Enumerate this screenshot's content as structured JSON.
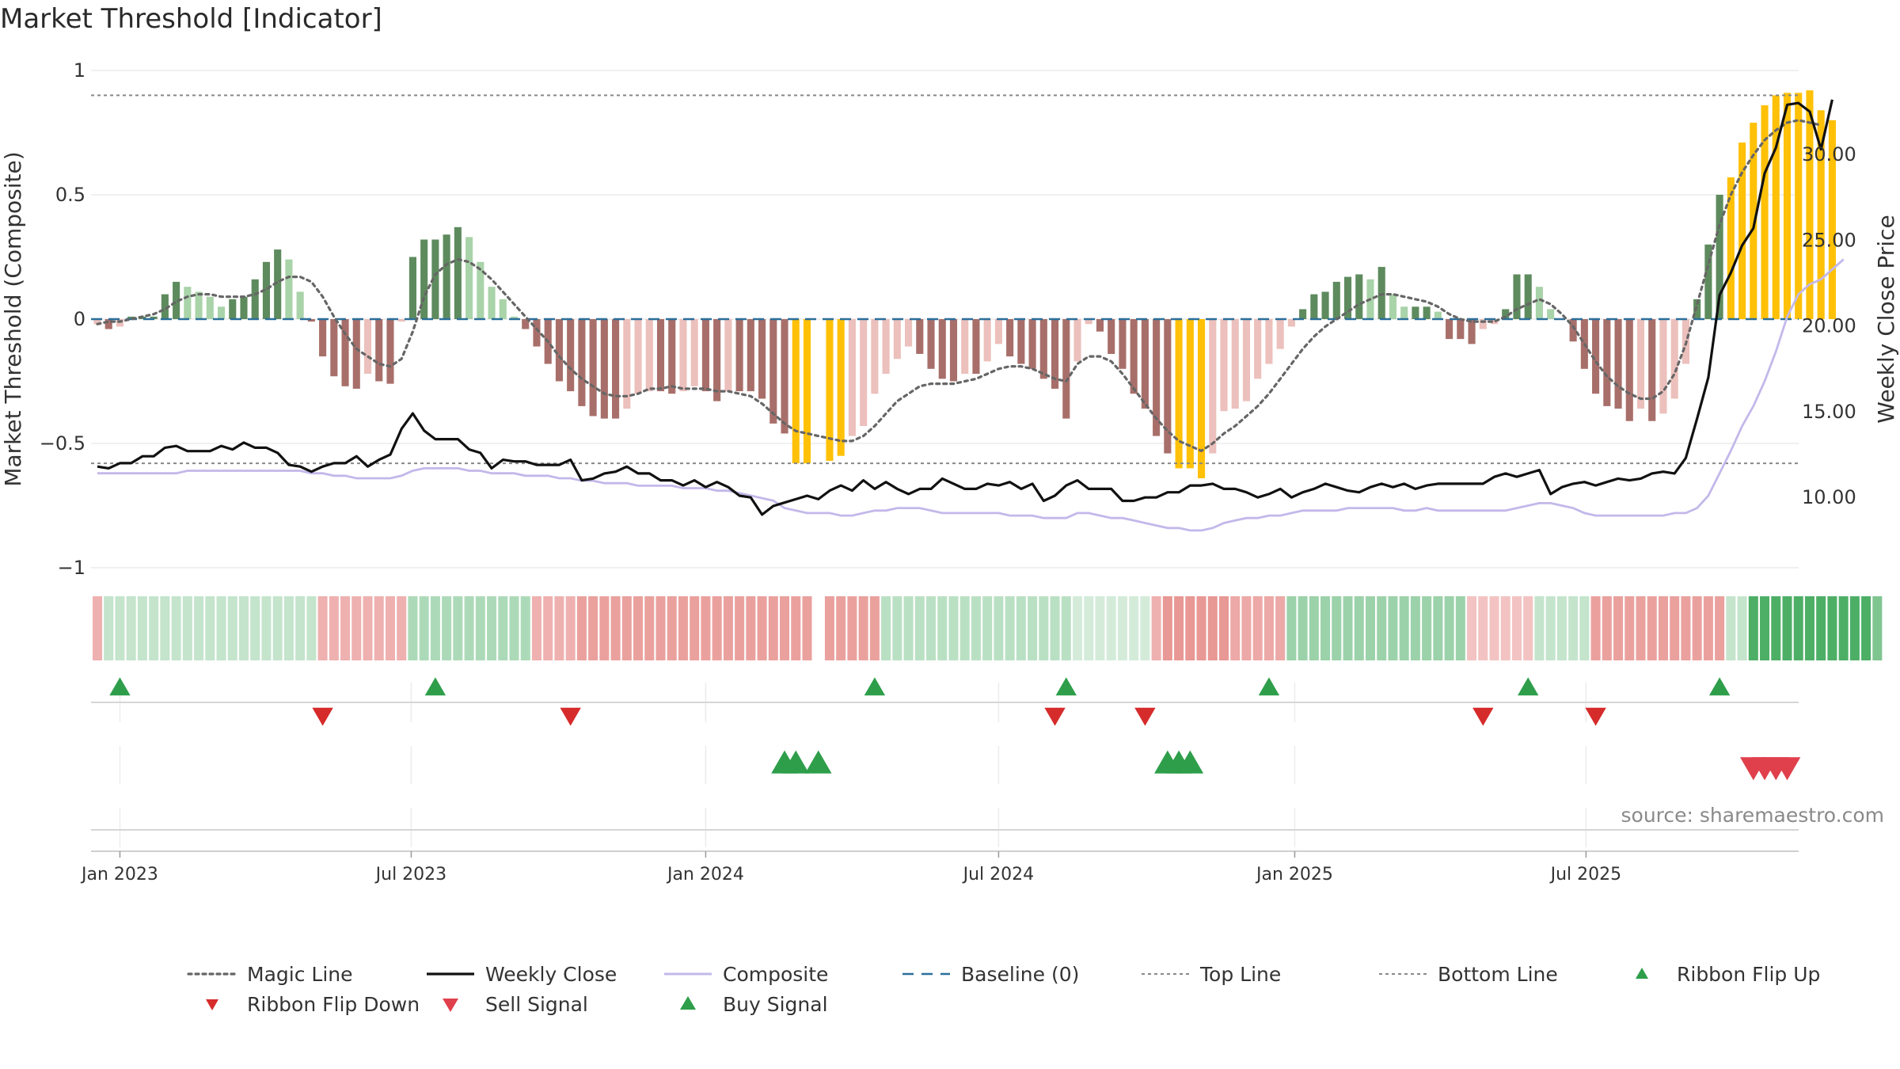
{
  "title": "Market Threshold [Indicator]",
  "source": "source: sharemaestro.com",
  "colors": {
    "buy_dark": "#5e8b5e",
    "buy_light": "#a9d3a9",
    "sell_dark": "#a86f6a",
    "sell_light": "#ecc0bc",
    "extreme": "#ffc107",
    "magic": "#666666",
    "close": "#111111",
    "composite": "#c3b8ea",
    "baseline": "#2b6f9a",
    "threshold": "#888888",
    "flip_up": "#2e9e4a",
    "flip_down": "#d62b2b",
    "signal_sell": "#e0404c",
    "signal_buy": "#2e9e4a",
    "strip_green": "#3aa655",
    "strip_red": "#d9534f"
  },
  "chart_data": {
    "type": "bar",
    "title": "Market Threshold [Indicator]",
    "ylabel": "Market Threshold (Composite)",
    "y2label": "Weekly Close Price",
    "ylim": [
      -1,
      1
    ],
    "y2lim": [
      5.9,
      34.9
    ],
    "y_ticks": [
      1,
      0.5,
      0,
      -0.5,
      -1
    ],
    "y_tick_labels": [
      "1",
      "0.5",
      "0",
      "−0.5",
      "−1"
    ],
    "y2_ticks": [
      30,
      25,
      20,
      15,
      10
    ],
    "y2_tick_labels": [
      "30.00",
      "25.00",
      "20.00",
      "15.00",
      "10.00"
    ],
    "x_start": "2022-12-19",
    "x_ticks": [
      "2023-01-02",
      "2023-07-02",
      "2024-01-01",
      "2024-07-01",
      "2025-01-01",
      "2025-07-01"
    ],
    "x_tick_labels": [
      "Jan 2023",
      "Jul 2023",
      "Jan 2024",
      "Jul 2024",
      "Jan 2025",
      "Jul 2025"
    ],
    "top_line": 0.9,
    "bottom_line": -0.58,
    "baseline": 0,
    "bars": [
      -0.02,
      -0.04,
      -0.03,
      0.01,
      0.01,
      0.01,
      0.1,
      0.15,
      0.13,
      0.11,
      0.09,
      0.05,
      0.08,
      0.09,
      0.16,
      0.23,
      0.28,
      0.24,
      0.11,
      -0.01,
      -0.15,
      -0.23,
      -0.27,
      -0.28,
      -0.22,
      -0.25,
      -0.26,
      -0.01,
      0.25,
      0.32,
      0.32,
      0.34,
      0.37,
      0.33,
      0.23,
      0.13,
      0.08,
      0.01,
      -0.04,
      -0.11,
      -0.18,
      -0.25,
      -0.29,
      -0.35,
      -0.39,
      -0.4,
      -0.4,
      -0.36,
      -0.3,
      -0.29,
      -0.29,
      -0.3,
      -0.29,
      -0.27,
      -0.29,
      -0.33,
      -0.29,
      -0.29,
      -0.29,
      -0.32,
      -0.42,
      -0.46,
      -0.58,
      -0.58,
      0,
      -0.57,
      -0.55,
      -0.47,
      -0.43,
      -0.3,
      -0.22,
      -0.16,
      -0.11,
      -0.14,
      -0.2,
      -0.24,
      -0.25,
      -0.22,
      -0.22,
      -0.17,
      -0.1,
      -0.15,
      -0.18,
      -0.2,
      -0.24,
      -0.28,
      -0.4,
      -0.17,
      -0.02,
      -0.05,
      -0.14,
      -0.2,
      -0.3,
      -0.36,
      -0.47,
      -0.54,
      -0.6,
      -0.6,
      -0.64,
      -0.54,
      -0.37,
      -0.36,
      -0.33,
      -0.24,
      -0.18,
      -0.12,
      -0.03,
      0.04,
      0.1,
      0.11,
      0.15,
      0.17,
      0.18,
      0.16,
      0.21,
      0.1,
      0.05,
      0.05,
      0.05,
      0.03,
      -0.08,
      -0.08,
      -0.1,
      -0.04,
      -0.02,
      0.04,
      0.18,
      0.18,
      0.13,
      0.04,
      0,
      -0.09,
      -0.2,
      -0.3,
      -0.35,
      -0.36,
      -0.41,
      -0.36,
      -0.41,
      -0.38,
      -0.32,
      -0.18,
      0.08,
      0.3,
      0.5,
      0.57,
      0.71,
      0.79,
      0.86,
      0.9,
      0.91,
      0.91,
      0.92,
      0.84,
      0.8
    ],
    "magic_line": [
      -0.02,
      -0.01,
      -0.01,
      0,
      0.01,
      0.02,
      0.04,
      0.07,
      0.09,
      0.1,
      0.1,
      0.09,
      0.09,
      0.09,
      0.1,
      0.12,
      0.15,
      0.17,
      0.17,
      0.15,
      0.09,
      0.01,
      -0.06,
      -0.12,
      -0.15,
      -0.18,
      -0.19,
      -0.16,
      -0.05,
      0.09,
      0.18,
      0.22,
      0.24,
      0.23,
      0.2,
      0.16,
      0.11,
      0.06,
      0.01,
      -0.04,
      -0.09,
      -0.15,
      -0.2,
      -0.24,
      -0.27,
      -0.3,
      -0.31,
      -0.31,
      -0.3,
      -0.28,
      -0.28,
      -0.27,
      -0.28,
      -0.28,
      -0.28,
      -0.29,
      -0.29,
      -0.3,
      -0.31,
      -0.34,
      -0.38,
      -0.42,
      -0.45,
      -0.46,
      -0.47,
      -0.48,
      -0.49,
      -0.49,
      -0.47,
      -0.43,
      -0.38,
      -0.33,
      -0.3,
      -0.27,
      -0.26,
      -0.26,
      -0.26,
      -0.25,
      -0.24,
      -0.22,
      -0.2,
      -0.19,
      -0.19,
      -0.2,
      -0.22,
      -0.24,
      -0.25,
      -0.18,
      -0.15,
      -0.15,
      -0.17,
      -0.22,
      -0.28,
      -0.34,
      -0.4,
      -0.45,
      -0.49,
      -0.51,
      -0.53,
      -0.5,
      -0.46,
      -0.43,
      -0.39,
      -0.35,
      -0.3,
      -0.24,
      -0.18,
      -0.12,
      -0.07,
      -0.03,
      0,
      0.03,
      0.06,
      0.08,
      0.1,
      0.1,
      0.09,
      0.08,
      0.07,
      0.05,
      0.02,
      0,
      -0.01,
      -0.01,
      -0.01,
      0.01,
      0.04,
      0.06,
      0.08,
      0.06,
      0.02,
      -0.03,
      -0.1,
      -0.17,
      -0.23,
      -0.27,
      -0.3,
      -0.32,
      -0.32,
      -0.29,
      -0.22,
      -0.1,
      0.06,
      0.22,
      0.38,
      0.5,
      0.59,
      0.66,
      0.72,
      0.76,
      0.79,
      0.8,
      0.79,
      0.78
    ],
    "composite": [
      -0.62,
      -0.62,
      -0.62,
      -0.62,
      -0.62,
      -0.62,
      -0.62,
      -0.62,
      -0.61,
      -0.61,
      -0.61,
      -0.61,
      -0.61,
      -0.61,
      -0.61,
      -0.61,
      -0.61,
      -0.61,
      -0.61,
      -0.62,
      -0.62,
      -0.63,
      -0.63,
      -0.64,
      -0.64,
      -0.64,
      -0.64,
      -0.63,
      -0.61,
      -0.6,
      -0.6,
      -0.6,
      -0.6,
      -0.61,
      -0.61,
      -0.62,
      -0.62,
      -0.62,
      -0.63,
      -0.63,
      -0.63,
      -0.64,
      -0.64,
      -0.65,
      -0.65,
      -0.66,
      -0.66,
      -0.66,
      -0.67,
      -0.67,
      -0.67,
      -0.67,
      -0.68,
      -0.68,
      -0.68,
      -0.69,
      -0.69,
      -0.7,
      -0.71,
      -0.72,
      -0.73,
      -0.76,
      -0.77,
      -0.78,
      -0.78,
      -0.78,
      -0.79,
      -0.79,
      -0.78,
      -0.77,
      -0.77,
      -0.76,
      -0.76,
      -0.76,
      -0.77,
      -0.78,
      -0.78,
      -0.78,
      -0.78,
      -0.78,
      -0.78,
      -0.79,
      -0.79,
      -0.79,
      -0.8,
      -0.8,
      -0.8,
      -0.78,
      -0.78,
      -0.79,
      -0.8,
      -0.8,
      -0.81,
      -0.82,
      -0.83,
      -0.84,
      -0.84,
      -0.85,
      -0.85,
      -0.84,
      -0.82,
      -0.81,
      -0.8,
      -0.8,
      -0.79,
      -0.79,
      -0.78,
      -0.77,
      -0.77,
      -0.77,
      -0.77,
      -0.76,
      -0.76,
      -0.76,
      -0.76,
      -0.76,
      -0.77,
      -0.77,
      -0.76,
      -0.77,
      -0.77,
      -0.77,
      -0.77,
      -0.77,
      -0.77,
      -0.77,
      -0.76,
      -0.75,
      -0.74,
      -0.74,
      -0.75,
      -0.76,
      -0.78,
      -0.79,
      -0.79,
      -0.79,
      -0.79,
      -0.79,
      -0.79,
      -0.79,
      -0.78,
      -0.78,
      -0.76,
      -0.71,
      -0.62,
      -0.53,
      -0.43,
      -0.35,
      -0.25,
      -0.13,
      0.01,
      0.1,
      0.14,
      0.16,
      0.2,
      0.24
    ],
    "weekly_close": [
      11.8,
      11.7,
      12.0,
      12.0,
      12.4,
      12.4,
      12.9,
      13.0,
      12.7,
      12.7,
      12.7,
      13.0,
      12.8,
      13.2,
      12.9,
      12.9,
      12.6,
      11.9,
      11.8,
      11.5,
      11.8,
      12.0,
      12.0,
      12.4,
      11.8,
      12.2,
      12.5,
      14.0,
      14.9,
      13.9,
      13.4,
      13.4,
      13.4,
      12.8,
      12.6,
      11.7,
      12.2,
      12.1,
      12.1,
      11.9,
      11.9,
      11.9,
      12.2,
      11.0,
      11.1,
      11.4,
      11.5,
      11.8,
      11.4,
      11.4,
      11.0,
      11.0,
      10.7,
      11.0,
      10.6,
      10.9,
      10.6,
      10.1,
      10.0,
      9.0,
      9.5,
      9.7,
      9.9,
      10.1,
      9.9,
      10.4,
      10.7,
      10.4,
      11.0,
      10.5,
      10.9,
      10.5,
      10.2,
      10.5,
      10.5,
      11.1,
      10.8,
      10.5,
      10.5,
      10.8,
      10.7,
      10.9,
      10.5,
      10.8,
      9.8,
      10.1,
      10.7,
      11.0,
      10.5,
      10.5,
      10.5,
      9.8,
      9.8,
      10.0,
      10.0,
      10.3,
      10.3,
      10.7,
      10.7,
      10.8,
      10.5,
      10.5,
      10.3,
      10.0,
      10.2,
      10.5,
      10.0,
      10.3,
      10.5,
      10.8,
      10.6,
      10.4,
      10.3,
      10.6,
      10.8,
      10.6,
      10.8,
      10.5,
      10.7,
      10.8,
      10.8,
      10.8,
      10.8,
      10.8,
      11.2,
      11.4,
      11.2,
      11.4,
      11.6,
      10.2,
      10.6,
      10.8,
      10.9,
      10.7,
      10.9,
      11.1,
      11.0,
      11.1,
      11.4,
      11.5,
      11.4,
      12.3,
      14.6,
      17.0,
      21.8,
      23.1,
      24.7,
      25.7,
      28.9,
      30.4,
      32.9,
      33.0,
      32.5,
      30.3,
      33.2
    ],
    "strip": [
      -0.45,
      0.3,
      0.3,
      0.3,
      0.3,
      0.3,
      0.3,
      0.3,
      0.3,
      0.3,
      0.3,
      0.3,
      0.3,
      0.3,
      0.3,
      0.3,
      0.3,
      0.3,
      0.3,
      0.3,
      -0.45,
      -0.45,
      -0.45,
      -0.45,
      -0.45,
      -0.45,
      -0.45,
      -0.45,
      0.42,
      0.42,
      0.42,
      0.42,
      0.42,
      0.42,
      0.42,
      0.42,
      0.42,
      0.42,
      0.42,
      -0.45,
      -0.45,
      -0.45,
      -0.45,
      -0.55,
      -0.55,
      -0.55,
      -0.55,
      -0.55,
      -0.55,
      -0.55,
      -0.55,
      -0.55,
      -0.55,
      -0.55,
      -0.55,
      -0.55,
      -0.55,
      -0.55,
      -0.55,
      -0.55,
      -0.55,
      -0.55,
      -0.55,
      -0.55,
      null,
      -0.55,
      -0.55,
      -0.55,
      -0.55,
      -0.55,
      0.35,
      0.35,
      0.35,
      0.35,
      0.35,
      0.35,
      0.35,
      0.35,
      0.35,
      0.35,
      0.35,
      0.35,
      0.35,
      0.35,
      0.35,
      0.35,
      0.35,
      0.22,
      0.22,
      0.22,
      0.22,
      0.22,
      0.22,
      0.22,
      -0.45,
      -0.6,
      -0.6,
      -0.6,
      -0.6,
      -0.6,
      -0.6,
      -0.5,
      -0.5,
      -0.5,
      -0.5,
      -0.5,
      0.5,
      0.5,
      0.5,
      0.5,
      0.5,
      0.5,
      0.5,
      0.5,
      0.5,
      0.5,
      0.5,
      0.5,
      0.5,
      0.5,
      0.5,
      0.5,
      -0.35,
      -0.35,
      -0.35,
      -0.35,
      -0.35,
      -0.35,
      0.3,
      0.3,
      0.3,
      0.3,
      0.3,
      -0.55,
      -0.55,
      -0.55,
      -0.55,
      -0.55,
      -0.55,
      -0.55,
      -0.55,
      -0.55,
      -0.55,
      -0.55,
      -0.55,
      0.3,
      0.3,
      0.9,
      0.9,
      0.9,
      0.9,
      0.9,
      0.9,
      0.9,
      0.9,
      0.9,
      0.9,
      0.9,
      0.65
    ],
    "ribbon_flip_up_weeks": [
      2,
      30,
      69,
      86,
      104,
      127,
      144
    ],
    "ribbon_flip_down_weeks": [
      20,
      42,
      85,
      93,
      123,
      133
    ],
    "buy_signal_weeks": [
      61,
      62,
      64,
      95,
      96,
      97
    ],
    "sell_signal_weeks": [
      147,
      148,
      149,
      150
    ]
  },
  "legend": [
    {
      "name": "magic-line",
      "label": "Magic Line",
      "kind": "dotted"
    },
    {
      "name": "weekly-close",
      "label": "Weekly Close",
      "kind": "solid"
    },
    {
      "name": "composite",
      "label": "Composite",
      "kind": "composite"
    },
    {
      "name": "baseline",
      "label": "Baseline (0)",
      "kind": "dashed"
    },
    {
      "name": "top-line",
      "label": "Top Line",
      "kind": "thin-dotted"
    },
    {
      "name": "bottom-line",
      "label": "Bottom Line",
      "kind": "thin-dotted"
    },
    {
      "name": "ribbon-flip-up",
      "label": "Ribbon Flip Up",
      "kind": "tri-up"
    },
    {
      "name": "ribbon-flip-down",
      "label": "Ribbon Flip Down",
      "kind": "tri-down"
    },
    {
      "name": "sell-signal",
      "label": "Sell Signal",
      "kind": "tri-down-big"
    },
    {
      "name": "buy-signal",
      "label": "Buy Signal",
      "kind": "tri-up-big"
    }
  ]
}
